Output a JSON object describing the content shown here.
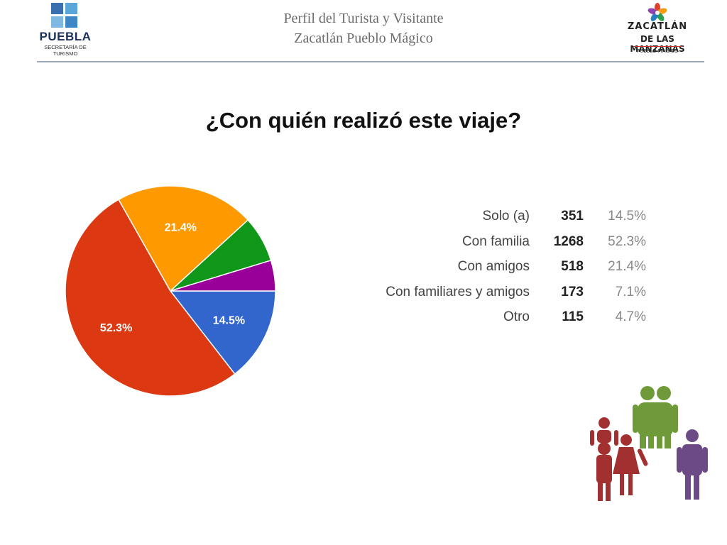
{
  "header": {
    "title_line1": "Perfil del Turista y Visitante",
    "title_line2": "Zacatlán Pueblo Mágico",
    "left_logo": {
      "name": "PUEBLA",
      "subtitle": "SECRETARÍA DE TURISMO"
    },
    "right_logo": {
      "line1": "ZACATLÁN",
      "line2": "DE LAS MANZANAS",
      "line3": "PUEBLO MÁGICO"
    }
  },
  "slide": {
    "title": "¿Con quién realizó este viaje?"
  },
  "colors": {
    "solo": "#3366cc",
    "familia": "#dc3912",
    "amigos": "#ff9900",
    "familiares_amigos": "#109618",
    "otro": "#990099",
    "figure_red": "#a33030",
    "figure_green": "#6f9a3a",
    "figure_purple": "#6b4a86"
  },
  "chart_data": {
    "type": "pie",
    "title": "",
    "categories": [
      "Solo (a)",
      "Con familia",
      "Con amigos",
      "Con familiares y amigos",
      "Otro"
    ],
    "counts": [
      351,
      1268,
      518,
      173,
      115
    ],
    "values": [
      14.5,
      52.3,
      21.4,
      7.1,
      4.7
    ],
    "percent_labels": [
      "14.5%",
      "52.3%",
      "21.4%",
      "7.1%",
      "4.7%"
    ],
    "slice_labels_shown": [
      "14.5%",
      "52.3%",
      "21.4%",
      "",
      ""
    ],
    "colors": [
      "#3366cc",
      "#dc3912",
      "#ff9900",
      "#109618",
      "#990099"
    ],
    "legend": "right"
  }
}
